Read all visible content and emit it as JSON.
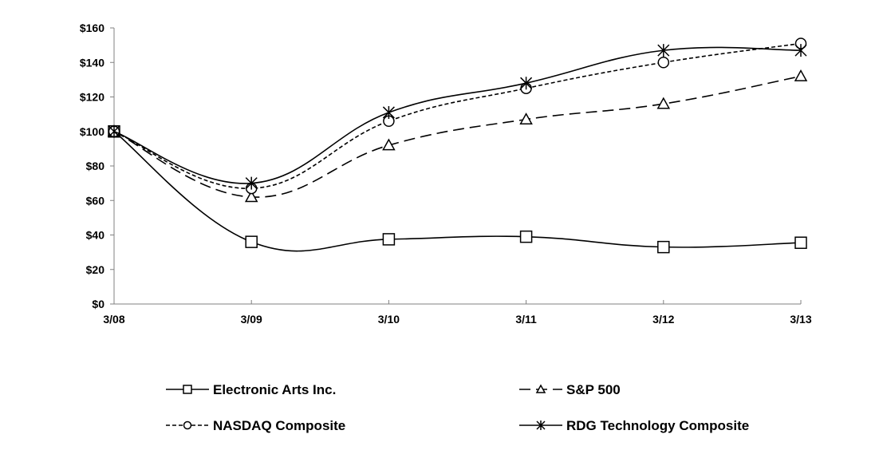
{
  "chart_data": {
    "type": "line",
    "title": "",
    "xlabel": "",
    "ylabel": "",
    "categories": [
      "3/08",
      "3/09",
      "3/10",
      "3/11",
      "3/12",
      "3/13"
    ],
    "ylim": [
      0,
      160
    ],
    "yticks": [
      0,
      20,
      40,
      60,
      80,
      100,
      120,
      140,
      160
    ],
    "ytick_labels": [
      "$0",
      "$20",
      "$40",
      "$60",
      "$80",
      "$100",
      "$120",
      "$140",
      "$160"
    ],
    "grid": false,
    "legend_position": "bottom",
    "series": [
      {
        "name": "Electronic Arts Inc.",
        "values": [
          100,
          36,
          37.5,
          39,
          33,
          35.5
        ],
        "marker": "square",
        "dash": "solid",
        "color": "#000000"
      },
      {
        "name": "S&P 500",
        "values": [
          100,
          62,
          92,
          107,
          116,
          132
        ],
        "marker": "triangle",
        "dash": "long-dash",
        "color": "#000000"
      },
      {
        "name": "NASDAQ Composite",
        "values": [
          100,
          67,
          106,
          125,
          140,
          151
        ],
        "marker": "circle",
        "dash": "short-dash",
        "color": "#000000"
      },
      {
        "name": "RDG Technology Composite",
        "values": [
          100,
          70,
          111,
          128,
          147,
          147
        ],
        "marker": "asterisk",
        "dash": "solid",
        "color": "#000000"
      }
    ]
  }
}
